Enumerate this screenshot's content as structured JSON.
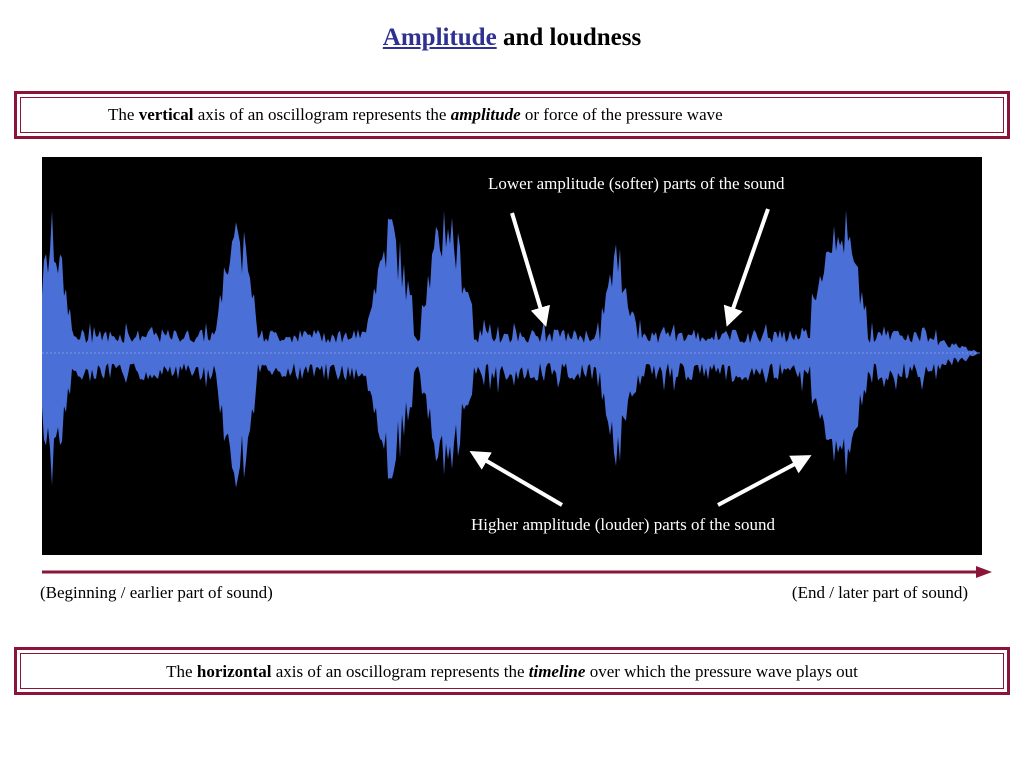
{
  "title": {
    "link_text": "Amplitude",
    "rest": " and loudness"
  },
  "vertical_note": {
    "p1": "The ",
    "b1": "vertical",
    "p2": " axis of an oscillogram represents the ",
    "bi": "amplitude",
    "p3": " or force of the pressure wave"
  },
  "annotations": {
    "lower": "Lower amplitude (softer) parts of the sound",
    "higher": "Higher amplitude (louder) parts of the sound"
  },
  "timeline": {
    "start_label": "(Beginning / earlier part of sound)",
    "end_label": "(End / later part of sound)"
  },
  "horizontal_note": {
    "p1": "The ",
    "b1": "horizontal",
    "p2": " axis of an oscillogram represents the ",
    "bi": "timeline",
    "p3": " over which the pressure wave plays out"
  },
  "colors": {
    "accent": "#8a1538",
    "link": "#2e3192",
    "waveform": "#4a6fd6",
    "panel": "#000000"
  }
}
